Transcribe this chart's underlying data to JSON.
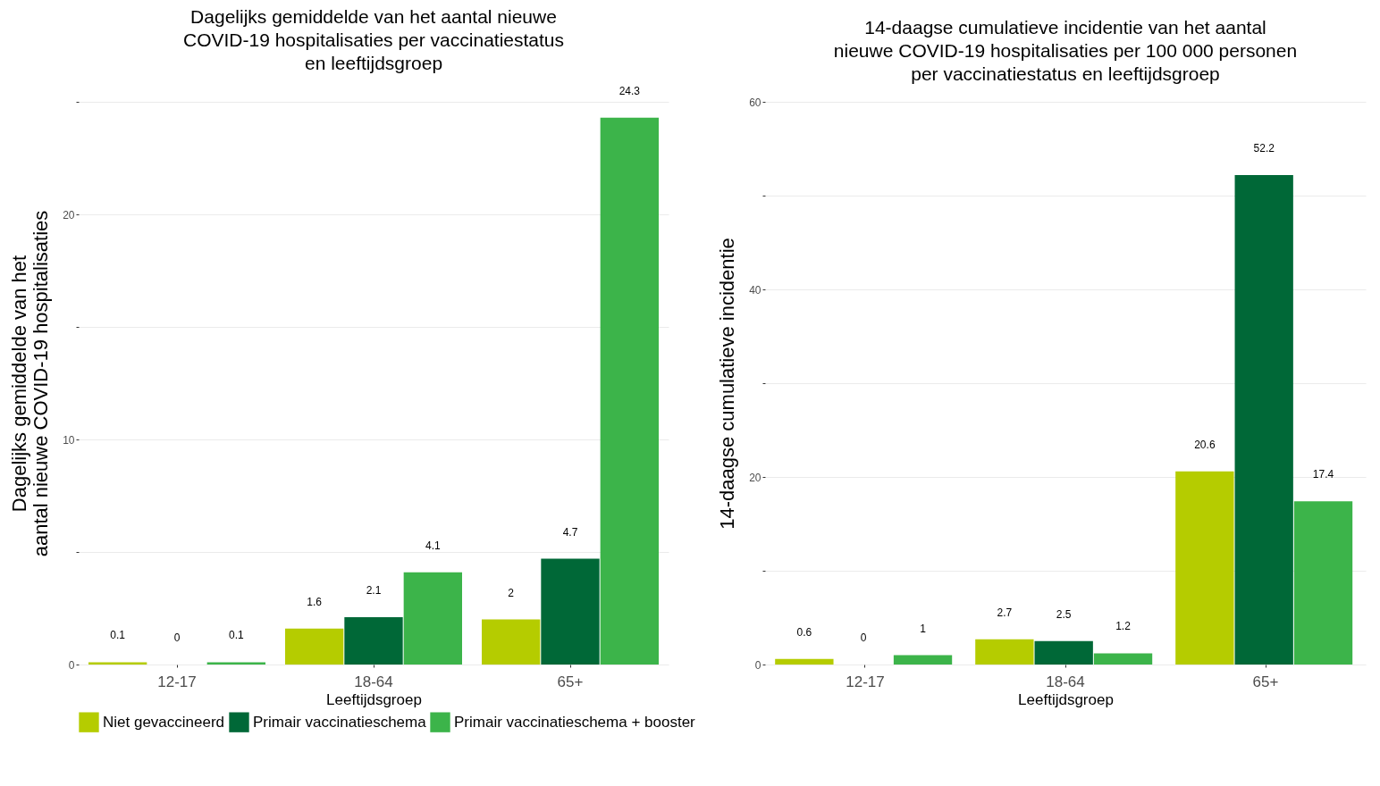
{
  "chart_data": [
    {
      "type": "bar",
      "title": "Dagelijks gemiddelde van het aantal nieuwe\nCOVID-19 hospitalisaties per vaccinatiestatus\nen leeftijdsgroep",
      "xlabel": "Leeftijdsgroep",
      "ylabel": "Dagelijks gemiddelde van het\naantal nieuwe COVID-19 hospitalisaties",
      "categories": [
        "12-17",
        "18-64",
        "65+"
      ],
      "series": [
        {
          "name": "Niet gevaccineerd",
          "color": "#b5cc00",
          "values": [
            0.1,
            1.6,
            2
          ]
        },
        {
          "name": "Primair vaccinatieschema",
          "color": "#006837",
          "values": [
            0,
            2.1,
            4.7
          ]
        },
        {
          "name": "Primair vaccinatieschema + booster",
          "color": "#3cb44a",
          "values": [
            0.1,
            4.1,
            24.3
          ]
        }
      ],
      "ylim": [
        0,
        25
      ],
      "yticks": [
        0,
        {
          "value": 5,
          "label": null
        },
        10,
        {
          "value": 15,
          "label": null
        },
        20,
        {
          "value": 25,
          "label": null
        }
      ],
      "grid": "y",
      "data_labels": true,
      "legend": "bottom"
    },
    {
      "type": "bar",
      "title": "14-daagse cumulatieve incidentie van het aantal\nnieuwe COVID-19 hospitalisaties per 100 000 personen\nper vaccinatiestatus en leeftijdsgroep",
      "xlabel": "Leeftijdsgroep",
      "ylabel": "14-daagse cumulatieve incidentie",
      "categories": [
        "12-17",
        "18-64",
        "65+"
      ],
      "series": [
        {
          "color": "#b5cc00",
          "values": [
            0.6,
            2.7,
            20.6
          ]
        },
        {
          "color": "#006837",
          "values": [
            0,
            2.5,
            52.2
          ]
        },
        {
          "color": "#3cb44a",
          "values": [
            1,
            1.2,
            17.4
          ]
        }
      ],
      "ylim": [
        0,
        60
      ],
      "yticks": [
        0,
        {
          "value": 10,
          "label": null
        },
        20,
        {
          "value": 30,
          "label": null
        },
        40,
        {
          "value": 50,
          "label": null
        },
        60
      ],
      "grid": "y",
      "data_labels": true
    }
  ]
}
